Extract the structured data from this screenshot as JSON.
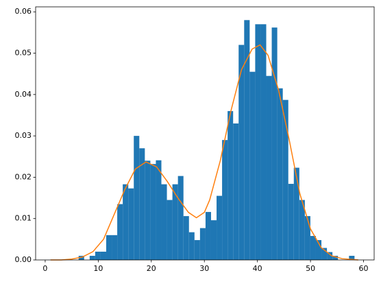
{
  "chart_data": {
    "type": "histogram",
    "bins": [
      6.3,
      7.34,
      8.38,
      9.42,
      10.46,
      11.5,
      12.54,
      13.58,
      14.62,
      15.66,
      16.7,
      17.74,
      18.78,
      19.82,
      20.86,
      21.9,
      22.94,
      23.98,
      25.02,
      26.06,
      27.1,
      28.14,
      29.18,
      30.22,
      31.26,
      32.3,
      33.34,
      34.38,
      35.42,
      36.46,
      37.5,
      38.54,
      39.58,
      40.62,
      41.66,
      42.7,
      43.74,
      44.78,
      45.82,
      46.86,
      47.9,
      48.94,
      49.98,
      51.02,
      52.06,
      53.1,
      54.14,
      55.18,
      56.22,
      57.26,
      58.3
    ],
    "values": [
      0.001,
      0,
      0.001,
      0.002,
      0.002,
      0.006,
      0.006,
      0.0135,
      0.0183,
      0.0173,
      0.03,
      0.027,
      0.024,
      0.0232,
      0.0241,
      0.0183,
      0.0145,
      0.0183,
      0.0203,
      0.0106,
      0.0067,
      0.0048,
      0.0077,
      0.0116,
      0.0096,
      0.0155,
      0.029,
      0.036,
      0.033,
      0.052,
      0.058,
      0.0455,
      0.057,
      0.057,
      0.0445,
      0.0562,
      0.0415,
      0.0387,
      0.0184,
      0.0223,
      0.0145,
      0.0106,
      0.0058,
      0.0048,
      0.0029,
      0.0019,
      0.001,
      0,
      0,
      0.001
    ],
    "color": "#1f77b4",
    "line": {
      "x": [
        1,
        3,
        5,
        7,
        9,
        11,
        13,
        15,
        17,
        19,
        21,
        23,
        25,
        27,
        28.5,
        30,
        31,
        33,
        35,
        37,
        39,
        40.5,
        42,
        44,
        46,
        48,
        50,
        52,
        54,
        56,
        58,
        59
      ],
      "values": [
        0,
        0,
        0.0002,
        0.0007,
        0.002,
        0.005,
        0.011,
        0.017,
        0.022,
        0.0237,
        0.0225,
        0.019,
        0.015,
        0.0115,
        0.0102,
        0.0115,
        0.0145,
        0.024,
        0.036,
        0.046,
        0.051,
        0.052,
        0.0495,
        0.041,
        0.029,
        0.016,
        0.0075,
        0.003,
        0.001,
        0.0003,
        0.0001,
        0
      ],
      "color": "#ff7f0e"
    },
    "xlim": [
      -1.8,
      62.0
    ],
    "ylim": [
      0,
      0.0612
    ],
    "xticks": [
      0,
      10,
      20,
      30,
      40,
      50,
      60
    ],
    "yticks": [
      {
        "value": 0,
        "label": "0.00"
      },
      {
        "value": 0.01,
        "label": "0.01"
      },
      {
        "value": 0.02,
        "label": "0.02"
      },
      {
        "value": 0.03,
        "label": "0.03"
      },
      {
        "value": 0.04,
        "label": "0.04"
      },
      {
        "value": 0.05,
        "label": "0.05"
      },
      {
        "value": 0.06,
        "label": "0.06"
      }
    ]
  }
}
